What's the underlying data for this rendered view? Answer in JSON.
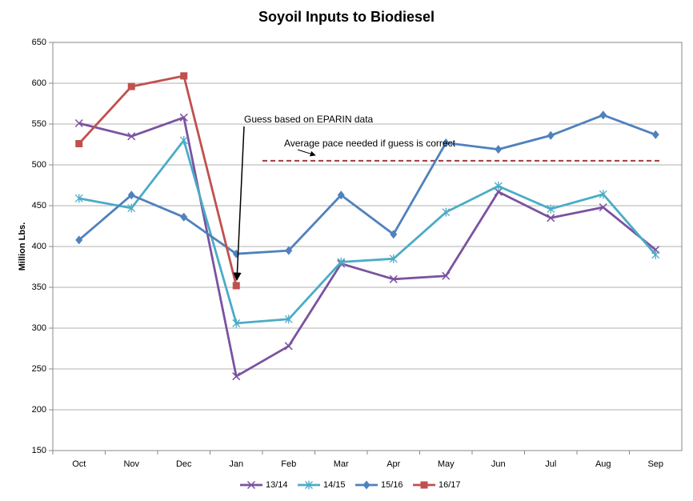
{
  "chart_data": {
    "type": "line",
    "title": "Soyoil Inputs to Biodiesel",
    "y_label": "Million Lbs.",
    "categories": [
      "Oct",
      "Nov",
      "Dec",
      "Jan",
      "Feb",
      "Mar",
      "Apr",
      "May",
      "Jun",
      "Jul",
      "Aug",
      "Sep"
    ],
    "series": [
      {
        "name": "13/14",
        "color": "#7b52a0",
        "marker": "x",
        "values": [
          551,
          535,
          558,
          241,
          278,
          379,
          360,
          364,
          467,
          435,
          448,
          396
        ]
      },
      {
        "name": "14/15",
        "color": "#4bacc6",
        "marker": "star",
        "values": [
          459,
          447,
          530,
          306,
          311,
          381,
          385,
          442,
          474,
          446,
          464,
          390
        ]
      },
      {
        "name": "15/16",
        "color": "#4f81bd",
        "marker": "diamond",
        "values": [
          408,
          463,
          436,
          391,
          395,
          463,
          415,
          527,
          519,
          536,
          561,
          537
        ]
      },
      {
        "name": "16/17",
        "color": "#c0504d",
        "marker": "square",
        "values": [
          526,
          596,
          609,
          352,
          null,
          null,
          null,
          null,
          null,
          null,
          null,
          null
        ]
      }
    ],
    "ylim": [
      150,
      650
    ],
    "yticks": [
      150,
      200,
      250,
      300,
      350,
      400,
      450,
      500,
      550,
      600,
      650
    ],
    "grid": true,
    "reference_line": {
      "value": 505,
      "color": "#a0393c",
      "label": "Average pace needed if guess is correct"
    },
    "annotation": "Guess based on EPARIN data",
    "legend": "bottom"
  }
}
